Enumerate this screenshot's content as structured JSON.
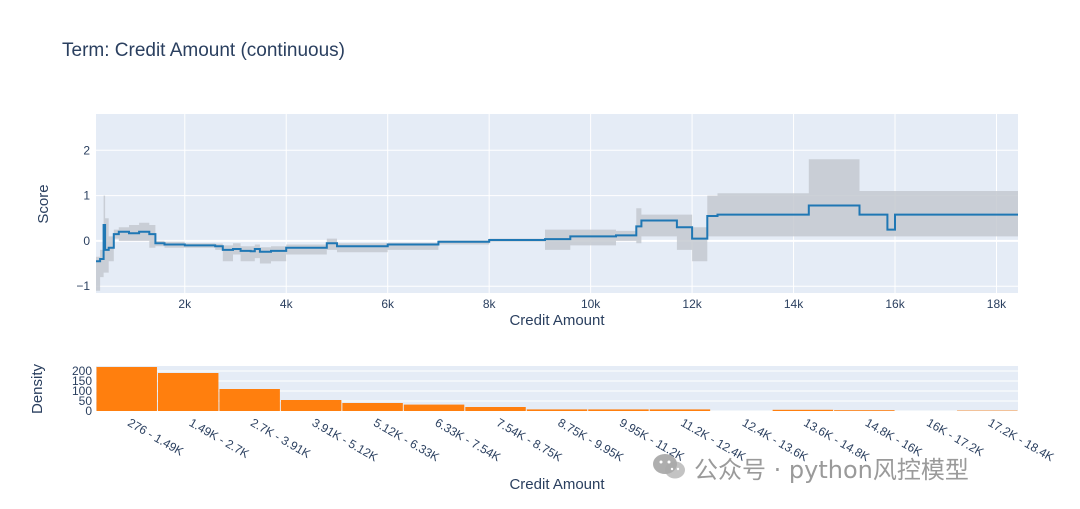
{
  "title": "Term: Credit Amount (continuous)",
  "colors": {
    "plot_bg": "#e5ecf6",
    "grid": "#ffffff",
    "score_line": "#1f77b4",
    "band": "#c4c9d0",
    "bars": "#ff7f0e",
    "text": "#2a3f5f"
  },
  "chart_data": [
    {
      "type": "line",
      "name": "score",
      "title": "Term: Credit Amount (continuous)",
      "xlabel": "Credit Amount",
      "ylabel": "Score",
      "xlim": [
        250,
        18424
      ],
      "ylim": [
        -1.15,
        2.8
      ],
      "xticks": [
        2000,
        4000,
        6000,
        8000,
        10000,
        12000,
        14000,
        16000,
        18000
      ],
      "xtick_labels": [
        "2k",
        "4k",
        "6k",
        "8k",
        "10k",
        "12k",
        "14k",
        "16k",
        "18k"
      ],
      "yticks": [
        -1,
        0,
        1,
        2
      ],
      "ytick_labels": [
        "−1",
        "0",
        "1",
        "2"
      ],
      "step_x": [
        250,
        330,
        400,
        430,
        500,
        600,
        700,
        900,
        1100,
        1300,
        1420,
        1600,
        2000,
        2600,
        2750,
        2950,
        3100,
        3300,
        3380,
        3480,
        3700,
        4000,
        4800,
        5000,
        6000,
        7000,
        8000,
        9100,
        9600,
        10500,
        10900,
        11000,
        11700,
        12000,
        12300,
        12500,
        14300,
        15300,
        15850,
        16000,
        18424
      ],
      "step_y": [
        -0.45,
        -0.4,
        0.35,
        -0.2,
        -0.15,
        0.15,
        0.2,
        0.17,
        0.2,
        0.15,
        -0.05,
        -0.08,
        -0.1,
        -0.12,
        -0.2,
        -0.18,
        -0.22,
        -0.23,
        -0.18,
        -0.24,
        -0.22,
        -0.15,
        -0.05,
        -0.12,
        -0.08,
        -0.02,
        0.02,
        0.04,
        0.1,
        0.12,
        0.32,
        0.45,
        0.3,
        0.05,
        0.55,
        0.58,
        0.78,
        0.58,
        0.25,
        0.58,
        0.58
      ],
      "band_upper": [
        -0.35,
        -0.2,
        1.0,
        0.5,
        0.1,
        0.25,
        0.3,
        0.35,
        0.4,
        0.35,
        0.0,
        -0.02,
        -0.05,
        -0.06,
        -0.1,
        -0.05,
        -0.12,
        -0.12,
        -0.08,
        -0.14,
        -0.12,
        -0.08,
        0.05,
        -0.05,
        -0.04,
        0.01,
        0.05,
        0.25,
        0.25,
        0.22,
        0.72,
        0.58,
        0.58,
        0.3,
        1.0,
        1.05,
        1.8,
        1.1,
        1.1,
        1.1,
        1.1
      ],
      "band_lower": [
        -1.1,
        -0.8,
        -0.7,
        -0.7,
        -0.45,
        0.05,
        0.0,
        0.0,
        0.0,
        -0.15,
        -0.12,
        -0.15,
        -0.15,
        -0.2,
        -0.45,
        -0.3,
        -0.45,
        -0.45,
        -0.38,
        -0.5,
        -0.45,
        -0.3,
        -0.2,
        -0.25,
        -0.2,
        -0.08,
        -0.02,
        -0.2,
        -0.1,
        0.0,
        -0.05,
        0.1,
        -0.2,
        -0.45,
        0.1,
        0.1,
        0.1,
        0.1,
        0.1,
        0.1,
        0.1
      ]
    },
    {
      "type": "bar",
      "name": "density",
      "xlabel": "Credit Amount",
      "ylabel": "Density",
      "ylim": [
        0,
        225
      ],
      "yticks": [
        0,
        50,
        100,
        150,
        200
      ],
      "ytick_labels": [
        "0",
        "50",
        "100",
        "150",
        "200"
      ],
      "categories": [
        "276 - 1.49K",
        "1.49K - 2.7K",
        "2.7K - 3.91K",
        "3.91K - 5.12K",
        "5.12K - 6.33K",
        "6.33K - 7.54K",
        "7.54K - 8.75K",
        "8.75K - 9.95K",
        "9.95K - 11.2K",
        "11.2K - 12.4K",
        "12.4K - 13.6K",
        "13.6K - 14.8K",
        "14.8K - 16K",
        "16K - 17.2K",
        "17.2K - 18.4K"
      ],
      "values": [
        220,
        190,
        110,
        55,
        40,
        32,
        20,
        8,
        8,
        8,
        0,
        6,
        4,
        0,
        2
      ]
    }
  ],
  "watermark": "公众号 · python风控模型"
}
